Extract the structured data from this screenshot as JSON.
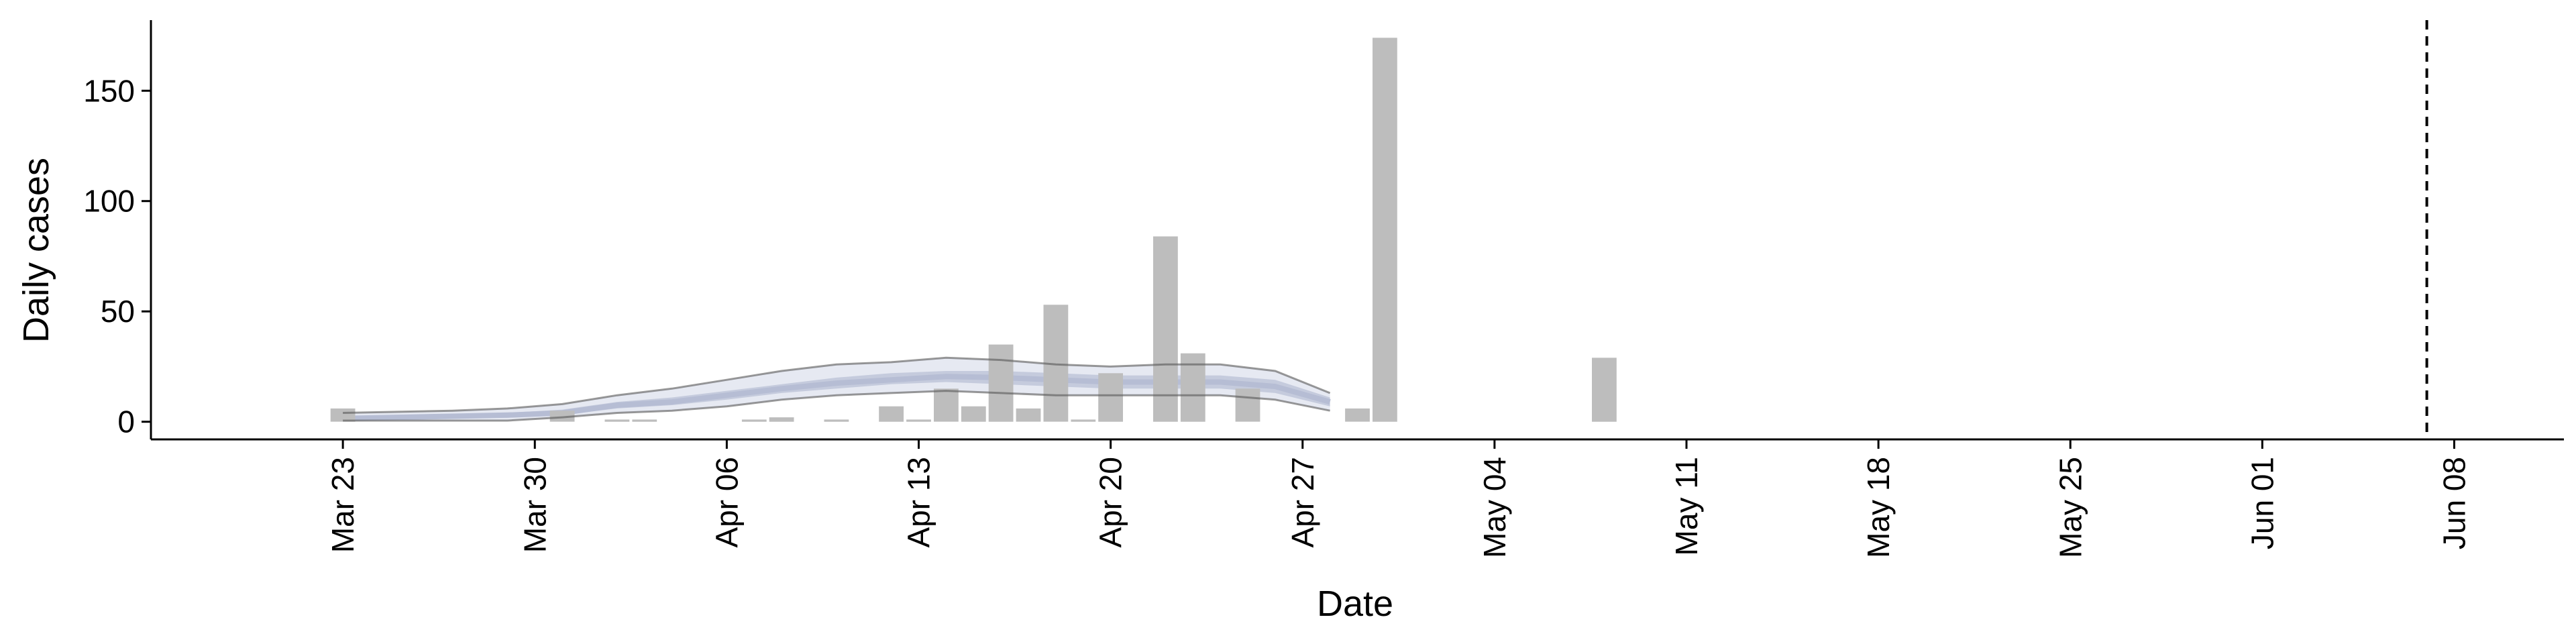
{
  "chart_data": {
    "type": "bar",
    "title": "",
    "xlabel": "Date",
    "ylabel": "Daily cases",
    "ylim": [
      -8,
      182
    ],
    "xlim": [
      "2020-03-16",
      "2020-06-12"
    ],
    "yticks": [
      0,
      50,
      100,
      150
    ],
    "xticks": [
      {
        "date": "2020-03-23",
        "label": "Mar 23"
      },
      {
        "date": "2020-03-30",
        "label": "Mar 30"
      },
      {
        "date": "2020-04-06",
        "label": "Apr 06"
      },
      {
        "date": "2020-04-13",
        "label": "Apr 13"
      },
      {
        "date": "2020-04-20",
        "label": "Apr 20"
      },
      {
        "date": "2020-04-27",
        "label": "Apr 27"
      },
      {
        "date": "2020-05-04",
        "label": "May 04"
      },
      {
        "date": "2020-05-11",
        "label": "May 11"
      },
      {
        "date": "2020-05-18",
        "label": "May 18"
      },
      {
        "date": "2020-05-25",
        "label": "May 25"
      },
      {
        "date": "2020-06-01",
        "label": "Jun 01"
      },
      {
        "date": "2020-06-08",
        "label": "Jun 08"
      }
    ],
    "grid": false,
    "vline_date": "2020-06-07",
    "bars": [
      {
        "date": "2020-03-23",
        "value": 6
      },
      {
        "date": "2020-03-31",
        "value": 5
      },
      {
        "date": "2020-04-02",
        "value": 1
      },
      {
        "date": "2020-04-03",
        "value": 1
      },
      {
        "date": "2020-04-07",
        "value": 1
      },
      {
        "date": "2020-04-08",
        "value": 2
      },
      {
        "date": "2020-04-10",
        "value": 1
      },
      {
        "date": "2020-04-12",
        "value": 7
      },
      {
        "date": "2020-04-13",
        "value": 1
      },
      {
        "date": "2020-04-14",
        "value": 15
      },
      {
        "date": "2020-04-15",
        "value": 7
      },
      {
        "date": "2020-04-16",
        "value": 35
      },
      {
        "date": "2020-04-17",
        "value": 6
      },
      {
        "date": "2020-04-18",
        "value": 53
      },
      {
        "date": "2020-04-19",
        "value": 1
      },
      {
        "date": "2020-04-20",
        "value": 22
      },
      {
        "date": "2020-04-22",
        "value": 84
      },
      {
        "date": "2020-04-23",
        "value": 31
      },
      {
        "date": "2020-04-25",
        "value": 15
      },
      {
        "date": "2020-04-29",
        "value": 6
      },
      {
        "date": "2020-04-30",
        "value": 174
      },
      {
        "date": "2020-05-08",
        "value": 29
      }
    ],
    "estimate": [
      {
        "date": "2020-03-23",
        "lower": 0.5,
        "upper": 4,
        "inner_lower": 1,
        "inner_upper": 2.5,
        "median": 1.5
      },
      {
        "date": "2020-03-25",
        "lower": 0.5,
        "upper": 4.5,
        "inner_lower": 1.2,
        "inner_upper": 3,
        "median": 2
      },
      {
        "date": "2020-03-27",
        "lower": 0.5,
        "upper": 5,
        "inner_lower": 1.5,
        "inner_upper": 3.5,
        "median": 2.5
      },
      {
        "date": "2020-03-29",
        "lower": 0.5,
        "upper": 6,
        "inner_lower": 1.8,
        "inner_upper": 4,
        "median": 3
      },
      {
        "date": "2020-03-31",
        "lower": 2,
        "upper": 8,
        "inner_lower": 3,
        "inner_upper": 5.5,
        "median": 4
      },
      {
        "date": "2020-04-02",
        "lower": 4,
        "upper": 12,
        "inner_lower": 6,
        "inner_upper": 9,
        "median": 7.5
      },
      {
        "date": "2020-04-04",
        "lower": 5,
        "upper": 15,
        "inner_lower": 7.5,
        "inner_upper": 11,
        "median": 9
      },
      {
        "date": "2020-04-06",
        "lower": 7,
        "upper": 19,
        "inner_lower": 10,
        "inner_upper": 14,
        "median": 12
      },
      {
        "date": "2020-04-08",
        "lower": 10,
        "upper": 23,
        "inner_lower": 13,
        "inner_upper": 17,
        "median": 15
      },
      {
        "date": "2020-04-10",
        "lower": 12,
        "upper": 26,
        "inner_lower": 15,
        "inner_upper": 20,
        "median": 17.5
      },
      {
        "date": "2020-04-12",
        "lower": 13,
        "upper": 27,
        "inner_lower": 17,
        "inner_upper": 22,
        "median": 19
      },
      {
        "date": "2020-04-14",
        "lower": 14,
        "upper": 29,
        "inner_lower": 18,
        "inner_upper": 23,
        "median": 20.5
      },
      {
        "date": "2020-04-16",
        "lower": 13,
        "upper": 28,
        "inner_lower": 17,
        "inner_upper": 23,
        "median": 20
      },
      {
        "date": "2020-04-18",
        "lower": 12,
        "upper": 26,
        "inner_lower": 16,
        "inner_upper": 22,
        "median": 19
      },
      {
        "date": "2020-04-20",
        "lower": 12,
        "upper": 25,
        "inner_lower": 15,
        "inner_upper": 21,
        "median": 18
      },
      {
        "date": "2020-04-22",
        "lower": 12,
        "upper": 26,
        "inner_lower": 15,
        "inner_upper": 21,
        "median": 18
      },
      {
        "date": "2020-04-24",
        "lower": 12,
        "upper": 26,
        "inner_lower": 15,
        "inner_upper": 21,
        "median": 18
      },
      {
        "date": "2020-04-26",
        "lower": 10,
        "upper": 23,
        "inner_lower": 13,
        "inner_upper": 19,
        "median": 16
      },
      {
        "date": "2020-04-28",
        "lower": 5,
        "upper": 13,
        "inner_lower": 7,
        "inner_upper": 11,
        "median": 9
      }
    ]
  }
}
